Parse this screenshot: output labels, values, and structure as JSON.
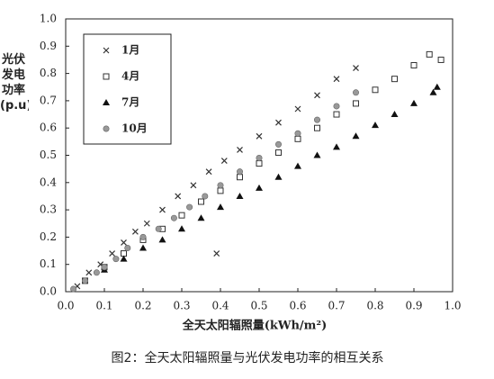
{
  "chart_data": {
    "type": "scatter",
    "title": "图2：全天太阳辐照量与光伏发电功率的相互关系",
    "x_label": "全天太阳辐照量(kWh/m²)",
    "y_label": "光伏发电功率(p.u)",
    "xlim": [
      0,
      1
    ],
    "ylim": [
      0,
      1
    ],
    "xticks": [
      {
        "value": 0,
        "label": "0.0"
      },
      0.1,
      0.2,
      0.3,
      0.4,
      0.5,
      0.6,
      0.7,
      0.8,
      0.9,
      {
        "value": 1,
        "label": "1.0"
      }
    ],
    "yticks": [
      {
        "value": 0,
        "label": "0.0"
      },
      0.1,
      0.2,
      0.3,
      0.4,
      0.5,
      0.6,
      0.7,
      0.8,
      0.9,
      {
        "value": 1,
        "label": "1.0"
      }
    ],
    "legend": "upper left",
    "series": [
      {
        "name": "1月",
        "marker": "x",
        "color": "#333333",
        "x": [
          0.03,
          0.06,
          0.09,
          0.12,
          0.15,
          0.18,
          0.21,
          0.25,
          0.29,
          0.33,
          0.37,
          0.41,
          0.45,
          0.5,
          0.55,
          0.6,
          0.65,
          0.7,
          0.75,
          0.39
        ],
        "values": [
          0.02,
          0.07,
          0.1,
          0.14,
          0.18,
          0.22,
          0.25,
          0.3,
          0.35,
          0.39,
          0.44,
          0.48,
          0.52,
          0.57,
          0.62,
          0.67,
          0.72,
          0.78,
          0.82,
          0.14
        ]
      },
      {
        "name": "4月",
        "marker": "square",
        "color": "#333333",
        "x": [
          0.05,
          0.1,
          0.15,
          0.2,
          0.25,
          0.3,
          0.35,
          0.4,
          0.45,
          0.5,
          0.55,
          0.6,
          0.65,
          0.7,
          0.75,
          0.8,
          0.85,
          0.9,
          0.94,
          0.97
        ],
        "values": [
          0.04,
          0.09,
          0.14,
          0.19,
          0.23,
          0.28,
          0.33,
          0.37,
          0.42,
          0.47,
          0.51,
          0.56,
          0.6,
          0.65,
          0.69,
          0.74,
          0.78,
          0.83,
          0.87,
          0.85
        ]
      },
      {
        "name": "7月",
        "marker": "triangle",
        "color": "#111111",
        "x": [
          0.1,
          0.15,
          0.2,
          0.25,
          0.3,
          0.35,
          0.4,
          0.45,
          0.5,
          0.55,
          0.6,
          0.65,
          0.7,
          0.75,
          0.8,
          0.85,
          0.9,
          0.95,
          0.96
        ],
        "values": [
          0.08,
          0.12,
          0.16,
          0.19,
          0.23,
          0.27,
          0.31,
          0.35,
          0.38,
          0.42,
          0.46,
          0.5,
          0.53,
          0.57,
          0.61,
          0.65,
          0.69,
          0.73,
          0.75
        ]
      },
      {
        "name": "10月",
        "marker": "circle",
        "color": "#999999",
        "x": [
          0.02,
          0.05,
          0.08,
          0.1,
          0.13,
          0.16,
          0.2,
          0.24,
          0.28,
          0.32,
          0.36,
          0.4,
          0.45,
          0.5,
          0.55,
          0.6,
          0.65,
          0.7,
          0.75
        ],
        "values": [
          0.01,
          0.04,
          0.07,
          0.09,
          0.12,
          0.16,
          0.2,
          0.23,
          0.27,
          0.31,
          0.35,
          0.39,
          0.44,
          0.49,
          0.54,
          0.58,
          0.63,
          0.68,
          0.73
        ]
      }
    ]
  }
}
